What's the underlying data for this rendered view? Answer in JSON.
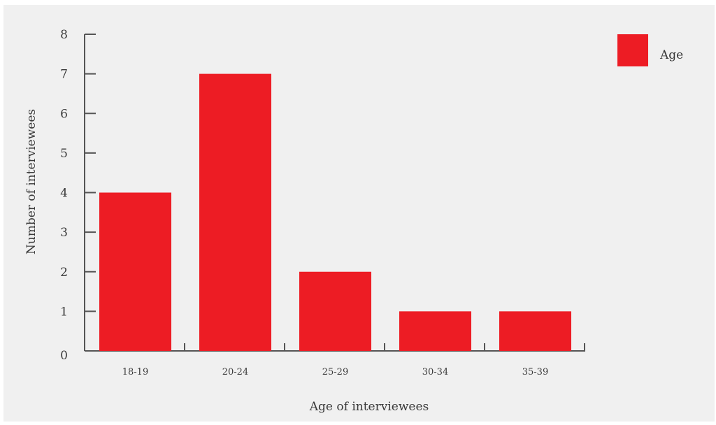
{
  "chart_data": {
    "type": "bar",
    "categories": [
      "18-19",
      "20-24",
      "25-29",
      "30-34",
      "35-39"
    ],
    "series": [
      {
        "name": "Age",
        "values": [
          4,
          7,
          2,
          1,
          1
        ]
      }
    ],
    "title": "",
    "xlabel": "Age of interviewees",
    "ylabel": "Number of interviewees",
    "ylim": [
      0,
      8
    ],
    "yticks": [
      0,
      1,
      2,
      3,
      4,
      5,
      6,
      7,
      8
    ],
    "grid": false,
    "legend_position": "top-right",
    "colors": {
      "bar": "#ed1c24",
      "axis": "#555555",
      "background": "#f0f0f0"
    }
  }
}
